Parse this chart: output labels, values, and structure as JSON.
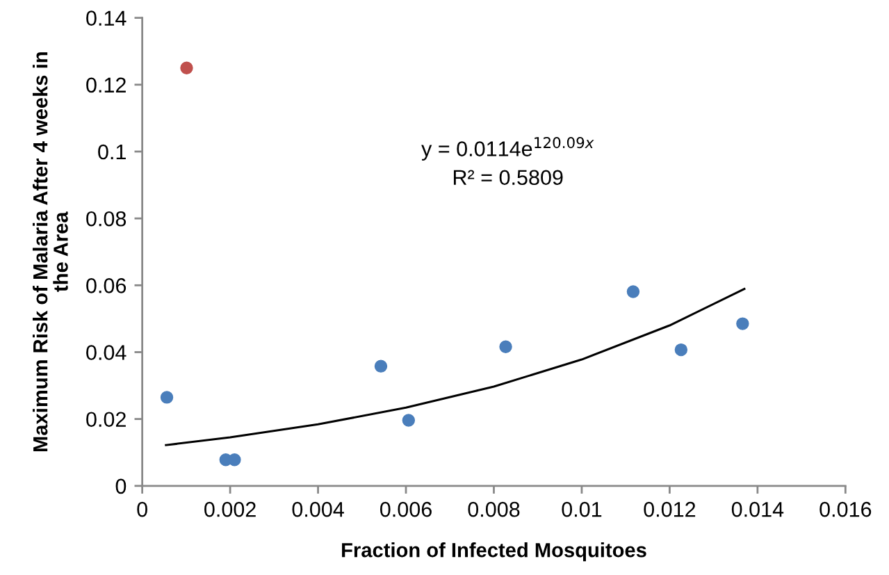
{
  "chart_data": {
    "type": "scatter",
    "xlabel": "Fraction of Infected Mosquitoes",
    "ylabel": "Maximum Risk of Malaria After 4 weeks in\nthe Area",
    "series": [
      {
        "color": "#4a7ebb",
        "x": [
          0.00056,
          0.0019,
          0.0021,
          0.00543,
          0.00606,
          0.00827,
          0.01117,
          0.01226,
          0.01366
        ],
        "values": [
          0.0265,
          0.0078,
          0.0078,
          0.0358,
          0.0196,
          0.0416,
          0.0581,
          0.0407,
          0.0485
        ]
      },
      {
        "color": "#c0504d",
        "x": [
          0.00101
        ],
        "values": [
          0.125
        ]
      },
      {
        "type": "line",
        "color": "#000000",
        "marker": "none",
        "x": [
          0.00054,
          0.002,
          0.004,
          0.006,
          0.008,
          0.01,
          0.012,
          0.0137
        ],
        "values": [
          0.0122,
          0.0145,
          0.0184,
          0.0234,
          0.0297,
          0.0378,
          0.048,
          0.0589
        ]
      }
    ],
    "annotations": [
      "y = 0.0114e$^{120.09x}$",
      "R² = 0.5809"
    ],
    "xlim": [
      0,
      0.016
    ],
    "xticks": [
      0,
      0.002,
      0.004,
      0.006,
      0.008,
      0.01,
      0.012,
      0.014,
      0.016
    ],
    "ylim": [
      0,
      0.14
    ],
    "yticks": [
      0,
      0.02,
      0.04,
      0.06,
      0.08,
      0.1,
      0.12,
      0.14
    ],
    "marker": "circle",
    "grid": false,
    "legend": false
  }
}
